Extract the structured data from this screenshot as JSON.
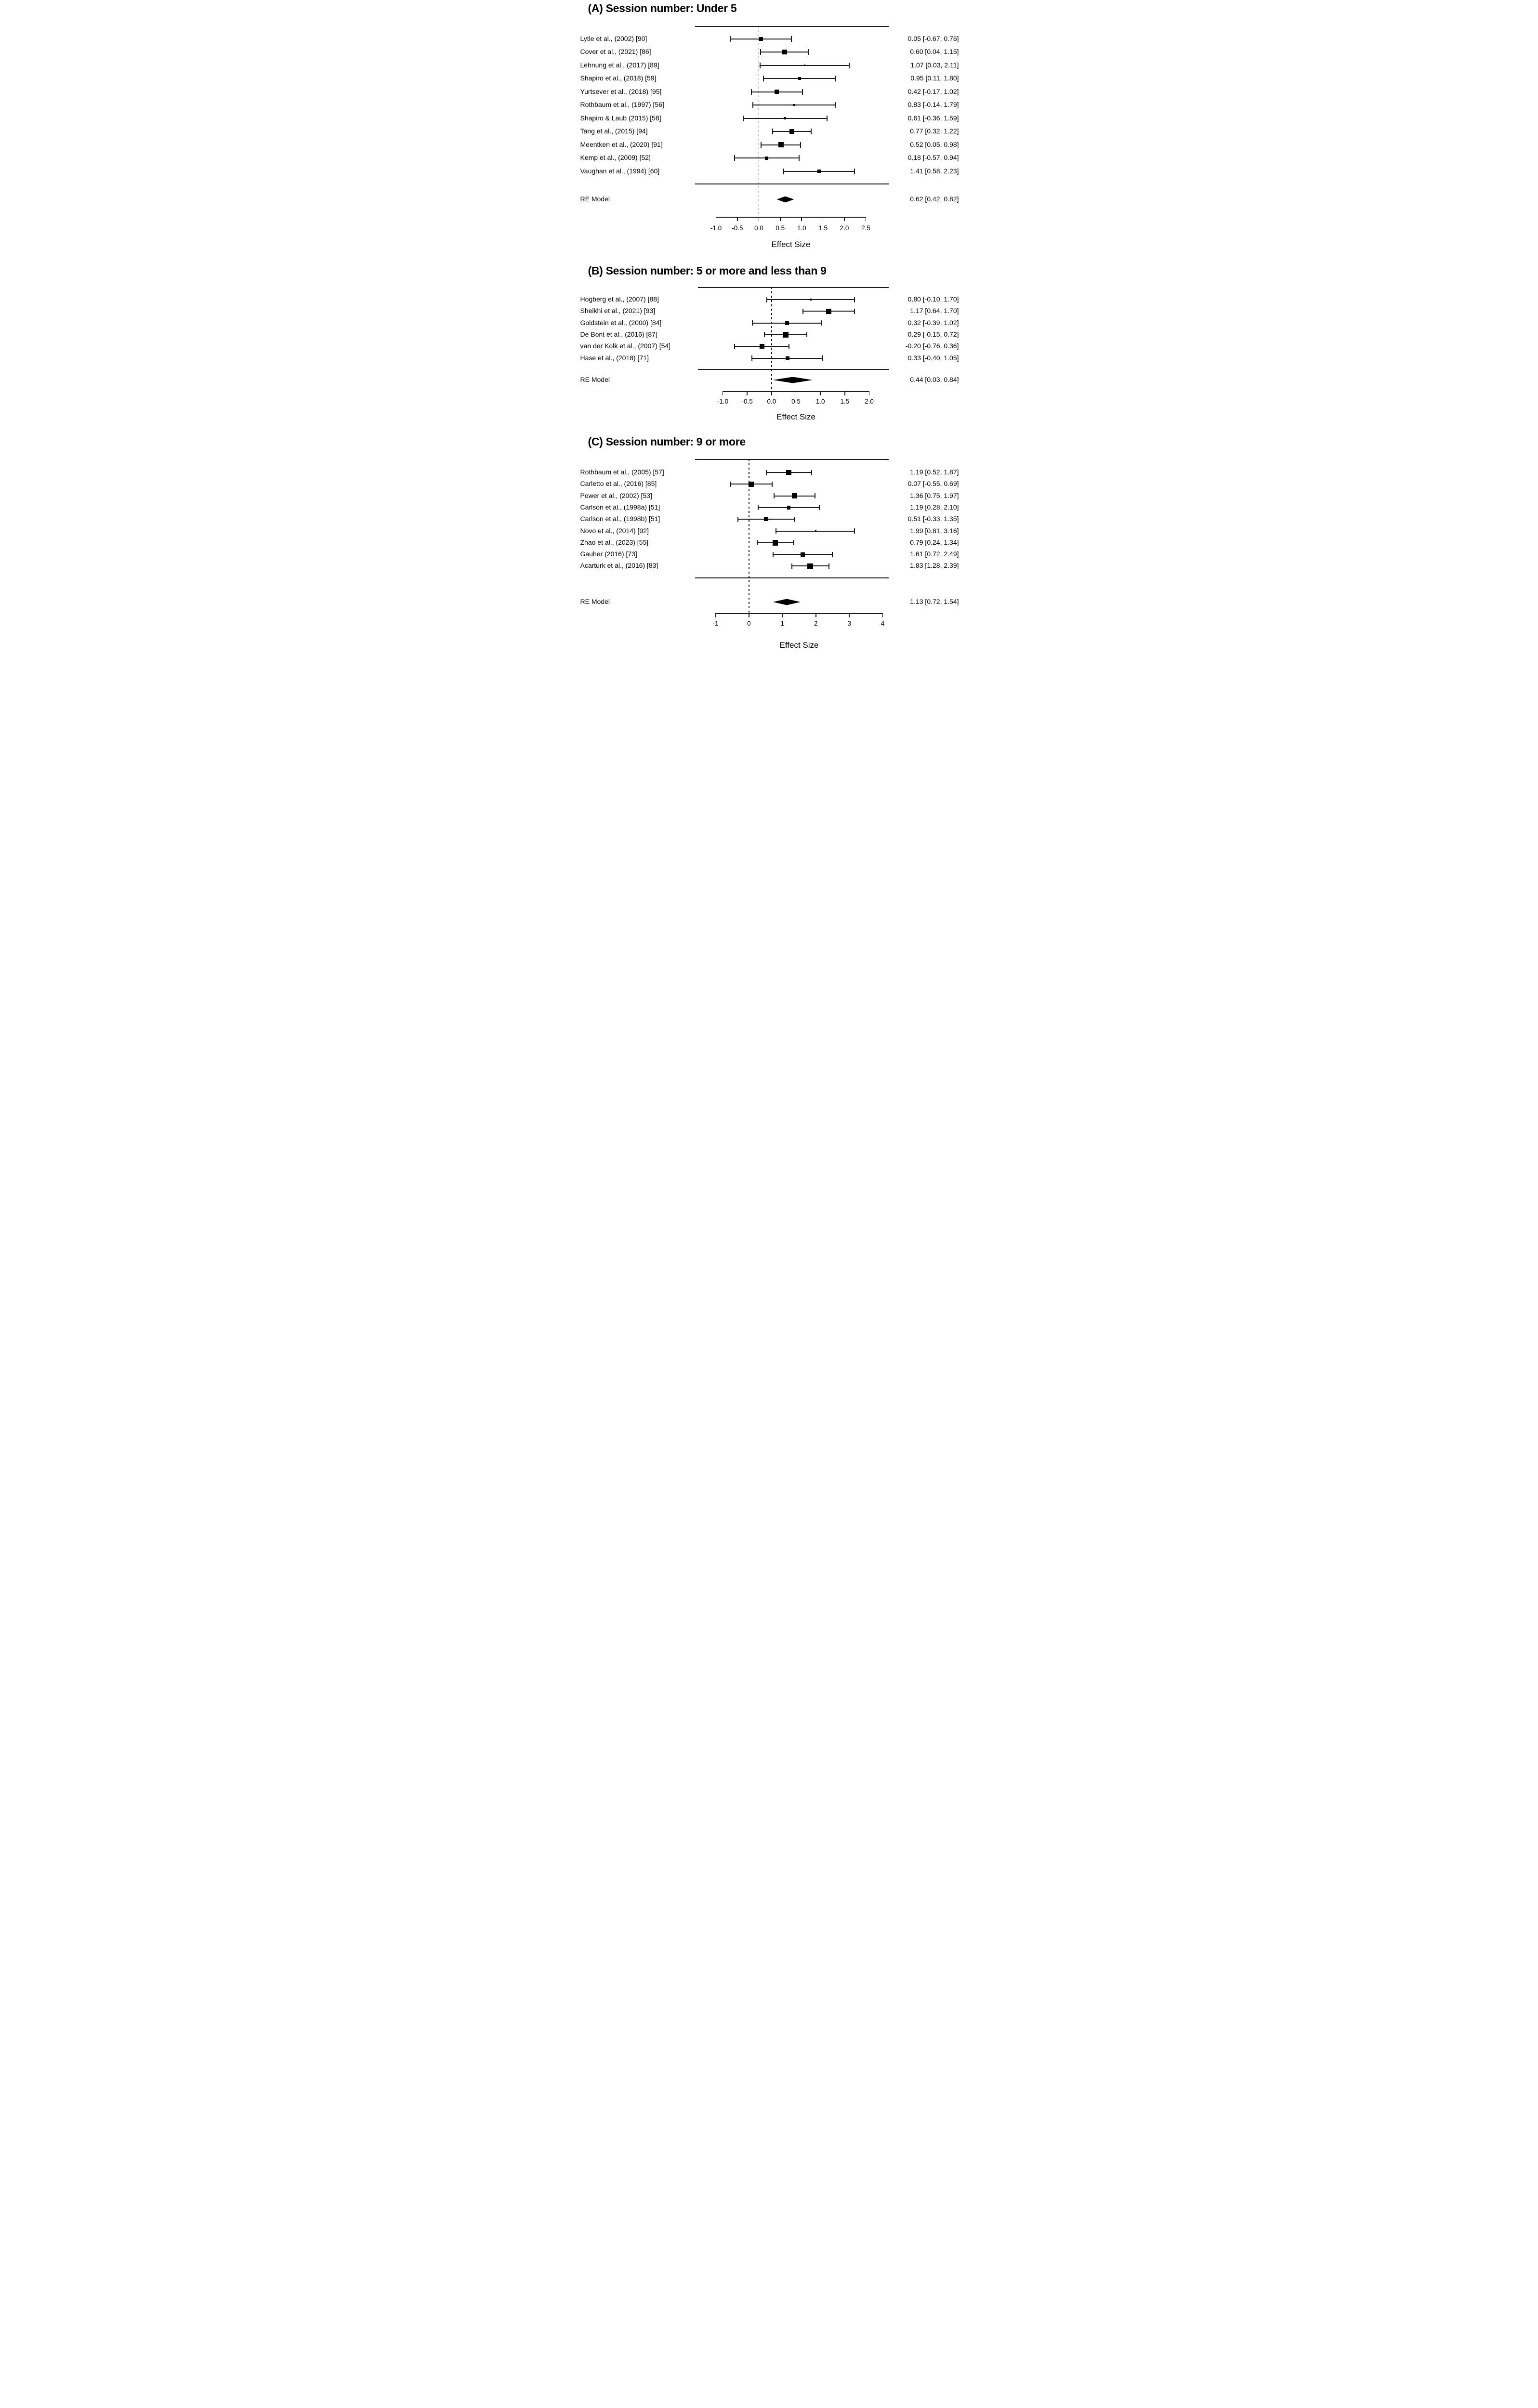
{
  "figure": {
    "kind": "meta-analysis forest plots by session number subgroup",
    "panel_count": 3
  },
  "chart_data": [
    {
      "type": "forest",
      "panel": "A",
      "title": "(A) Session number: Under 5",
      "xlabel": "Effect Size",
      "xlim": [
        -1.0,
        2.5
      ],
      "tick_values": [
        -1.0,
        -0.5,
        0.0,
        0.5,
        1.0,
        1.5,
        2.0,
        2.5
      ],
      "ticks": [
        "-1.0",
        "-0.5",
        "0.0",
        "0.5",
        "1.0",
        "1.5",
        "2.0",
        "2.5"
      ],
      "zero_line": 0,
      "studies": [
        {
          "label": "Lytle et al., (2002) [90]",
          "est": 0.05,
          "lo": -0.67,
          "hi": 0.76,
          "ci_text": "0.05 [-0.67, 0.76]",
          "marker_size": 8
        },
        {
          "label": "Cover et al., (2021) [86]",
          "est": 0.6,
          "lo": 0.04,
          "hi": 1.15,
          "ci_text": "0.60 [0.04, 1.15]",
          "marker_size": 10
        },
        {
          "label": "Lehnung et al., (2017) [89]",
          "est": 1.07,
          "lo": 0.03,
          "hi": 2.11,
          "ci_text": "1.07 [0.03, 2.11]",
          "marker_size": 3.5
        },
        {
          "label": "Shapiro et al., (2018) [59]",
          "est": 0.95,
          "lo": 0.11,
          "hi": 1.8,
          "ci_text": "0.95 [0.11, 1.80]",
          "marker_size": 6
        },
        {
          "label": "Yurtsever et al., (2018) [95]",
          "est": 0.42,
          "lo": -0.17,
          "hi": 1.02,
          "ci_text": "0.42 [-0.17, 1.02]",
          "marker_size": 9
        },
        {
          "label": "Rothbaum et al., (1997) [56]",
          "est": 0.83,
          "lo": -0.14,
          "hi": 1.79,
          "ci_text": "0.83 [-0.14, 1.79]",
          "marker_size": 4
        },
        {
          "label": "Shapiro & Laub (2015) [58]",
          "est": 0.61,
          "lo": -0.36,
          "hi": 1.59,
          "ci_text": "0.61 [-0.36, 1.59]",
          "marker_size": 5
        },
        {
          "label": "Tang et al., (2015) [94]",
          "est": 0.77,
          "lo": 0.32,
          "hi": 1.22,
          "ci_text": "0.77 [0.32, 1.22]",
          "marker_size": 10.5
        },
        {
          "label": "Meentken et al., (2020) [91]",
          "est": 0.52,
          "lo": 0.05,
          "hi": 0.98,
          "ci_text": "0.52 [0.05, 0.98]",
          "marker_size": 10.5
        },
        {
          "label": "Kemp et al., (2009) [52]",
          "est": 0.18,
          "lo": -0.57,
          "hi": 0.94,
          "ci_text": "0.18 [-0.57, 0.94]",
          "marker_size": 7
        },
        {
          "label": "Vaughan et al., (1994) [60]",
          "est": 1.41,
          "lo": 0.58,
          "hi": 2.23,
          "ci_text": "1.41 [0.58, 2.23]",
          "marker_size": 7
        }
      ],
      "re_model": {
        "label": "RE Model",
        "est": 0.62,
        "lo": 0.42,
        "hi": 0.82,
        "ci_text": "0.62 [0.42, 0.82]"
      }
    },
    {
      "type": "forest",
      "panel": "B",
      "title": "(B) Session number: 5 or more and less than 9",
      "xlabel": "Effect Size",
      "xlim": [
        -1.0,
        2.0
      ],
      "tick_values": [
        -1.0,
        -0.5,
        0.0,
        0.5,
        1.0,
        1.5,
        2.0
      ],
      "ticks": [
        "-1.0",
        "-0.5",
        "0.0",
        "0.5",
        "1.0",
        "1.5",
        "2.0"
      ],
      "zero_line": 0,
      "studies": [
        {
          "label": "Hogberg et al., (2007) [88]",
          "est": 0.8,
          "lo": -0.1,
          "hi": 1.7,
          "ci_text": "0.80 [-0.10, 1.70]",
          "marker_size": 3.5
        },
        {
          "label": "Sheikhi et al., (2021) [93]",
          "est": 1.17,
          "lo": 0.64,
          "hi": 1.7,
          "ci_text": "1.17 [0.64, 1.70]",
          "marker_size": 11
        },
        {
          "label": "Goldstein et al., (2000) [84]",
          "est": 0.32,
          "lo": -0.39,
          "hi": 1.02,
          "ci_text": "0.32 [-0.39, 1.02]",
          "marker_size": 8
        },
        {
          "label": "De Bont et al., (2016) [87]",
          "est": 0.29,
          "lo": -0.15,
          "hi": 0.72,
          "ci_text": "0.29 [-0.15, 0.72]",
          "marker_size": 11.5
        },
        {
          "label": "van der Kolk et al., (2007) [54]",
          "est": -0.2,
          "lo": -0.76,
          "hi": 0.36,
          "ci_text": "-0.20 [-0.76, 0.36]",
          "marker_size": 10
        },
        {
          "label": "Hase et al., (2018) [71]",
          "est": 0.33,
          "lo": -0.4,
          "hi": 1.05,
          "ci_text": "0.33 [-0.40, 1.05]",
          "marker_size": 8
        }
      ],
      "re_model": {
        "label": "RE Model",
        "est": 0.44,
        "lo": 0.03,
        "hi": 0.84,
        "ci_text": "0.44 [0.03, 0.84]"
      }
    },
    {
      "type": "forest",
      "panel": "C",
      "title": "(C) Session number: 9 or more",
      "xlabel": "Effect Size",
      "xlim": [
        -1.0,
        4.0
      ],
      "tick_values": [
        -1,
        0,
        1,
        2,
        3,
        4
      ],
      "ticks": [
        "-1",
        "0",
        "1",
        "2",
        "3",
        "4"
      ],
      "zero_line": 0,
      "studies": [
        {
          "label": "Rothbaum et al., (2005) [57]",
          "est": 1.19,
          "lo": 0.52,
          "hi": 1.87,
          "ci_text": "1.19 [0.52, 1.87]",
          "marker_size": 10.5
        },
        {
          "label": "Carletto et al., (2016) [85]",
          "est": 0.07,
          "lo": -0.55,
          "hi": 0.69,
          "ci_text": "0.07 [-0.55, 0.69]",
          "marker_size": 11
        },
        {
          "label": "Power et al., (2002) [53]",
          "est": 1.36,
          "lo": 0.75,
          "hi": 1.97,
          "ci_text": "1.36 [0.75, 1.97]",
          "marker_size": 11.5
        },
        {
          "label": "Carlson et al., (1998a) [51]",
          "est": 1.19,
          "lo": 0.28,
          "hi": 2.1,
          "ci_text": "1.19 [0.28, 2.10]",
          "marker_size": 7.5
        },
        {
          "label": "Carlson et al., (1998b) [51]",
          "est": 0.51,
          "lo": -0.33,
          "hi": 1.35,
          "ci_text": "0.51 [-0.33, 1.35]",
          "marker_size": 8.5
        },
        {
          "label": "Novo et al., (2014) [92]",
          "est": 1.99,
          "lo": 0.81,
          "hi": 3.16,
          "ci_text": "1.99 [0.81, 3.16]",
          "marker_size": 3
        },
        {
          "label": "Zhao et al., (2023) [55]",
          "est": 0.79,
          "lo": 0.24,
          "hi": 1.34,
          "ci_text": "0.79 [0.24, 1.34]",
          "marker_size": 11.5
        },
        {
          "label": "Gauher (2016) [73]",
          "est": 1.61,
          "lo": 0.72,
          "hi": 2.49,
          "ci_text": "1.61 [0.72, 2.49]",
          "marker_size": 9
        },
        {
          "label": "Acarturk et al., (2016) [83]",
          "est": 1.83,
          "lo": 1.28,
          "hi": 2.39,
          "ci_text": "1.83 [1.28, 2.39]",
          "marker_size": 11.5
        }
      ],
      "re_model": {
        "label": "RE Model",
        "est": 1.13,
        "lo": 0.72,
        "hi": 1.54,
        "ci_text": "1.13 [0.72, 1.54]"
      }
    }
  ]
}
